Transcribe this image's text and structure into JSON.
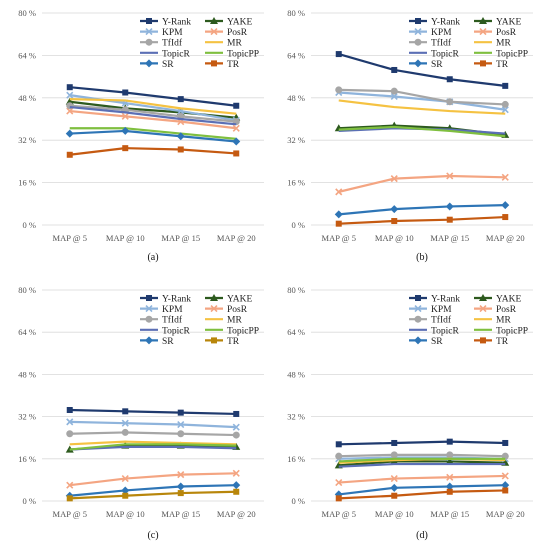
{
  "y_ticks": [
    "0 %",
    "16 %",
    "32 %",
    "48 %",
    "64 %",
    "80 %"
  ],
  "chart_data": [
    {
      "type": "line",
      "panel_label": "(a)",
      "categories": [
        "MAP @ 5",
        "MAP @ 10",
        "MAP @ 15",
        "MAP @ 20"
      ],
      "ylim": [
        0,
        80
      ],
      "grid": true,
      "legend": "top-right",
      "series": [
        {
          "name": "Y-Rank",
          "color": "#1f3a6e",
          "marker": "square",
          "values": [
            52,
            50,
            47.5,
            45
          ]
        },
        {
          "name": "YAKE",
          "color": "#2d5a1e",
          "marker": "triangle",
          "values": [
            46.5,
            44,
            42.5,
            40.5
          ]
        },
        {
          "name": "KPM",
          "color": "#8fb4dc",
          "marker": "x",
          "values": [
            49,
            46,
            43,
            39.5
          ]
        },
        {
          "name": "PosR",
          "color": "#f4a582",
          "marker": "x",
          "values": [
            43,
            41,
            39,
            36.5
          ]
        },
        {
          "name": "TfIdf",
          "color": "#a6a6a6",
          "marker": "circle",
          "values": [
            45,
            43.5,
            41,
            39
          ]
        },
        {
          "name": "MR",
          "color": "#f5c242",
          "marker": "none",
          "values": [
            47.5,
            47,
            44,
            42
          ]
        },
        {
          "name": "TopicR",
          "color": "#5b6fb5",
          "marker": "none",
          "values": [
            44.5,
            42.5,
            40,
            38
          ]
        },
        {
          "name": "TopicPP",
          "color": "#7fbf3f",
          "marker": "none",
          "values": [
            36.5,
            36.5,
            34.5,
            32.5
          ]
        },
        {
          "name": "SR",
          "color": "#2e75b6",
          "marker": "diamond",
          "values": [
            34.5,
            35.5,
            33.5,
            31.5
          ]
        },
        {
          "name": "TR",
          "color": "#c55a11",
          "marker": "square",
          "values": [
            26.5,
            29,
            28.5,
            27
          ]
        }
      ]
    },
    {
      "type": "line",
      "panel_label": "(b)",
      "categories": [
        "MAP @ 5",
        "MAP @ 10",
        "MAP @ 15",
        "MAP @ 20"
      ],
      "ylim": [
        0,
        80
      ],
      "grid": true,
      "legend": "top-right",
      "series": [
        {
          "name": "Y-Rank",
          "color": "#1f3a6e",
          "marker": "square",
          "values": [
            64.5,
            58.5,
            55,
            52.5
          ]
        },
        {
          "name": "YAKE",
          "color": "#2d5a1e",
          "marker": "triangle",
          "values": [
            36.5,
            37.5,
            36.5,
            34
          ]
        },
        {
          "name": "KPM",
          "color": "#8fb4dc",
          "marker": "x",
          "values": [
            50,
            48.5,
            46.5,
            43.5
          ]
        },
        {
          "name": "PosR",
          "color": "#f4a582",
          "marker": "x",
          "values": [
            12.5,
            17.5,
            18.5,
            18
          ]
        },
        {
          "name": "TfIdf",
          "color": "#a6a6a6",
          "marker": "circle",
          "values": [
            51,
            50.5,
            46.5,
            45.5
          ]
        },
        {
          "name": "MR",
          "color": "#f5c242",
          "marker": "none",
          "values": [
            47,
            44.5,
            43,
            42
          ]
        },
        {
          "name": "TopicR",
          "color": "#5b6fb5",
          "marker": "none",
          "values": [
            35.5,
            36.5,
            36,
            34.5
          ]
        },
        {
          "name": "TopicPP",
          "color": "#7fbf3f",
          "marker": "none",
          "values": [
            36,
            37,
            35.5,
            33.5
          ]
        },
        {
          "name": "SR",
          "color": "#2e75b6",
          "marker": "diamond",
          "values": [
            4,
            6,
            7,
            7.5
          ]
        },
        {
          "name": "TR",
          "color": "#c55a11",
          "marker": "square",
          "values": [
            0.5,
            1.5,
            2,
            3
          ]
        }
      ]
    },
    {
      "type": "line",
      "panel_label": "(c)",
      "categories": [
        "MAP @ 5",
        "MAP @ 10",
        "MAP @ 15",
        "MAP @ 20"
      ],
      "ylim": [
        0,
        80
      ],
      "grid": true,
      "legend": "top-right",
      "series": [
        {
          "name": "Y-Rank",
          "color": "#1f3a6e",
          "marker": "square",
          "values": [
            34.5,
            34,
            33.5,
            33
          ]
        },
        {
          "name": "YAKE",
          "color": "#2d5a1e",
          "marker": "triangle",
          "values": [
            19.5,
            21,
            21,
            20.5
          ]
        },
        {
          "name": "KPM",
          "color": "#8fb4dc",
          "marker": "x",
          "values": [
            30,
            29.5,
            29,
            28
          ]
        },
        {
          "name": "PosR",
          "color": "#f4a582",
          "marker": "x",
          "values": [
            6,
            8.5,
            10,
            10.5
          ]
        },
        {
          "name": "TfIdf",
          "color": "#a6a6a6",
          "marker": "circle",
          "values": [
            25.5,
            26,
            25.5,
            25
          ]
        },
        {
          "name": "MR",
          "color": "#f5c242",
          "marker": "none",
          "values": [
            21.5,
            22.5,
            22,
            21.5
          ]
        },
        {
          "name": "TopicR",
          "color": "#5b6fb5",
          "marker": "none",
          "values": [
            19.5,
            20.5,
            20.5,
            20
          ]
        },
        {
          "name": "TopicPP",
          "color": "#7fbf3f",
          "marker": "none",
          "values": [
            19.5,
            21.5,
            21.5,
            21
          ]
        },
        {
          "name": "SR",
          "color": "#2e75b6",
          "marker": "diamond",
          "values": [
            2,
            4,
            5.5,
            6
          ]
        },
        {
          "name": "TR",
          "color": "#b8860b",
          "marker": "square",
          "values": [
            1,
            2,
            3,
            3.5
          ]
        }
      ]
    },
    {
      "type": "line",
      "panel_label": "(d)",
      "categories": [
        "MAP @ 5",
        "MAP @ 10",
        "MAP @ 15",
        "MAP @ 20"
      ],
      "ylim": [
        0,
        80
      ],
      "grid": true,
      "legend": "top-right",
      "series": [
        {
          "name": "Y-Rank",
          "color": "#1f3a6e",
          "marker": "square",
          "values": [
            21.5,
            22,
            22.5,
            22
          ]
        },
        {
          "name": "YAKE",
          "color": "#2d5a1e",
          "marker": "triangle",
          "values": [
            13.5,
            15,
            15,
            14.5
          ]
        },
        {
          "name": "KPM",
          "color": "#8fb4dc",
          "marker": "x",
          "values": [
            16,
            16.5,
            16.5,
            16
          ]
        },
        {
          "name": "PosR",
          "color": "#f4a582",
          "marker": "x",
          "values": [
            7,
            8.5,
            9,
            9.5
          ]
        },
        {
          "name": "TfIdf",
          "color": "#a6a6a6",
          "marker": "circle",
          "values": [
            17,
            17.5,
            17.5,
            17
          ]
        },
        {
          "name": "MR",
          "color": "#f5c242",
          "marker": "none",
          "values": [
            14.5,
            15.5,
            16,
            15.5
          ]
        },
        {
          "name": "TopicR",
          "color": "#5b6fb5",
          "marker": "none",
          "values": [
            13,
            14,
            14,
            14
          ]
        },
        {
          "name": "TopicPP",
          "color": "#7fbf3f",
          "marker": "none",
          "values": [
            15,
            16,
            16,
            16
          ]
        },
        {
          "name": "SR",
          "color": "#2e75b6",
          "marker": "diamond",
          "values": [
            2.5,
            5,
            5.5,
            6
          ]
        },
        {
          "name": "TR",
          "color": "#c55a11",
          "marker": "square",
          "values": [
            1,
            2,
            3.5,
            4
          ]
        }
      ]
    }
  ]
}
